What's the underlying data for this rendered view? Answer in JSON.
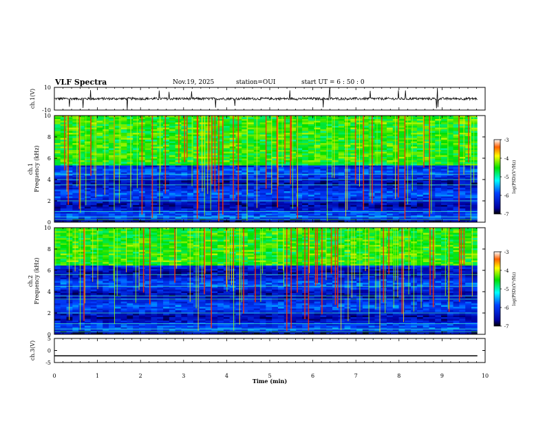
{
  "chart_data": {
    "type": "heatmap",
    "title": "VLF Spectra",
    "date": "Nov.19, 2025",
    "station": "station=OUI",
    "start_ut": "start  UT =  6 : 50 : 0",
    "xlabel": "Time  (min)",
    "xlim": [
      0,
      10
    ],
    "x_ticks": [
      "0",
      "1",
      "2",
      "3",
      "4",
      "5",
      "6",
      "7",
      "8",
      "9",
      "10"
    ],
    "data_end_min": 9.82,
    "panels": [
      {
        "kind": "waveform",
        "ylabel": "ch.1(V)",
        "ylim": [
          -10,
          10
        ],
        "y_ticks": [
          "10",
          "-10"
        ],
        "baseline": 0
      },
      {
        "kind": "spectrogram",
        "ylabel": "ch.1\nFrequency  (kHz)",
        "ylim": [
          0,
          10
        ],
        "y_ticks": [
          "0",
          "2",
          "4",
          "6",
          "8",
          "10"
        ],
        "colorbar": {
          "label": "log(PSD)(V²/Hz)",
          "range": [
            -7,
            -3
          ],
          "ticks": [
            "-3",
            "-4",
            "-5",
            "-6",
            "-7"
          ]
        },
        "band_kHz": [
          5.3,
          10
        ],
        "lines_kHz": [
          0.25,
          0.5,
          1.0,
          2.0,
          3.5,
          4.0,
          4.5
        ]
      },
      {
        "kind": "spectrogram",
        "ylabel": "ch.2\nFrequency  (kHz)",
        "ylim": [
          0,
          10
        ],
        "y_ticks": [
          "0",
          "2",
          "4",
          "6",
          "8",
          "10"
        ],
        "colorbar": {
          "label": "log(PSD)(V²/Hz)",
          "range": [
            -7,
            -3
          ],
          "ticks": [
            "-3",
            "-4",
            "-5",
            "-6",
            "-7"
          ]
        },
        "band_kHz": [
          6.5,
          10
        ],
        "lines_kHz": [
          0.25,
          0.5,
          1.0,
          2.0,
          3.3,
          3.6,
          4.5,
          5.6
        ]
      },
      {
        "kind": "waveform",
        "ylabel": "ch.3(V)",
        "ylim": [
          -5,
          5
        ],
        "y_ticks": [
          "5",
          "0",
          "-5"
        ],
        "baseline": -2.2
      }
    ]
  }
}
